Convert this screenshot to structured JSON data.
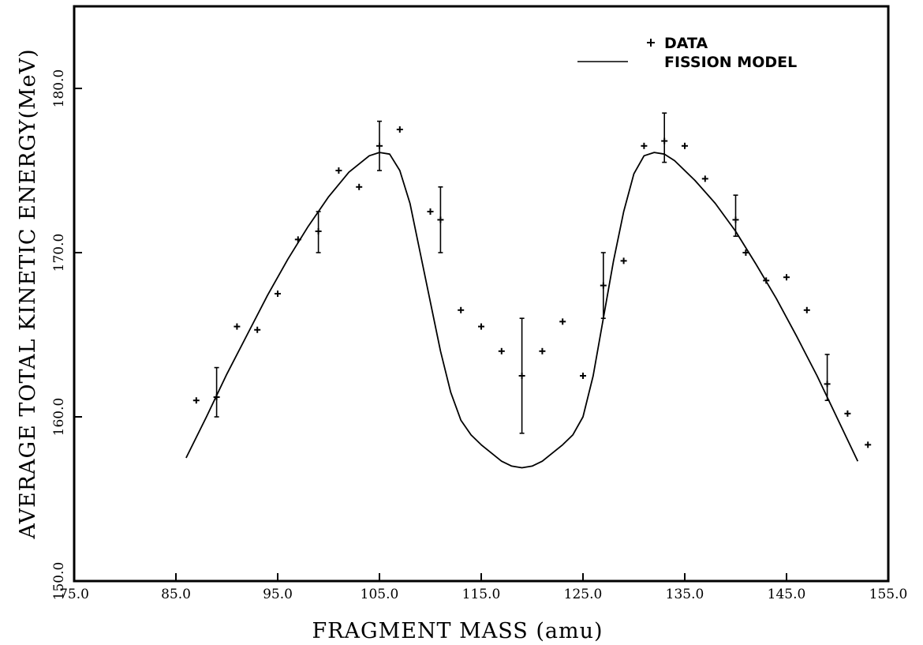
{
  "chart_data": {
    "type": "line",
    "title": "",
    "xlabel": "FRAGMENT MASS (amu)",
    "ylabel": "AVERAGE TOTAL KINETIC ENERGY(MeV)",
    "xlim": [
      75,
      155
    ],
    "ylim": [
      150,
      185
    ],
    "x_ticks": [
      "75.0",
      "85.0",
      "95.0",
      "105.0",
      "115.0",
      "125.0",
      "135.0",
      "145.0",
      "155.0"
    ],
    "y_ticks": [
      "150.0",
      "160.0",
      "170.0",
      "180.0"
    ],
    "grid": false,
    "legend_position": "top-right",
    "colors": {
      "ink": "#000000",
      "background": "#ffffff"
    },
    "series": [
      {
        "name": "DATA",
        "kind": "scatter-errorbar",
        "points": [
          {
            "x": 87,
            "y": 161.0
          },
          {
            "x": 89,
            "y": 161.2,
            "err_low": 160.0,
            "err_high": 163.0
          },
          {
            "x": 91,
            "y": 165.5
          },
          {
            "x": 93,
            "y": 165.3
          },
          {
            "x": 95,
            "y": 167.5
          },
          {
            "x": 97,
            "y": 170.8
          },
          {
            "x": 99,
            "y": 171.3,
            "err_low": 170.0,
            "err_high": 172.5
          },
          {
            "x": 101,
            "y": 175.0
          },
          {
            "x": 103,
            "y": 174.0
          },
          {
            "x": 105,
            "y": 176.5,
            "err_low": 175.0,
            "err_high": 178.0
          },
          {
            "x": 107,
            "y": 177.5
          },
          {
            "x": 110,
            "y": 172.5
          },
          {
            "x": 111,
            "y": 172.0,
            "err_low": 170.0,
            "err_high": 174.0
          },
          {
            "x": 113,
            "y": 166.5
          },
          {
            "x": 115,
            "y": 165.5
          },
          {
            "x": 117,
            "y": 164.0
          },
          {
            "x": 119,
            "y": 162.5,
            "err_low": 159.0,
            "err_high": 166.0
          },
          {
            "x": 121,
            "y": 164.0
          },
          {
            "x": 123,
            "y": 165.8
          },
          {
            "x": 125,
            "y": 162.5
          },
          {
            "x": 127,
            "y": 168.0,
            "err_low": 166.0,
            "err_high": 170.0
          },
          {
            "x": 129,
            "y": 169.5
          },
          {
            "x": 131,
            "y": 176.5
          },
          {
            "x": 133,
            "y": 176.8,
            "err_low": 175.5,
            "err_high": 178.5
          },
          {
            "x": 135,
            "y": 176.5
          },
          {
            "x": 137,
            "y": 174.5
          },
          {
            "x": 140,
            "y": 172.0,
            "err_low": 171.0,
            "err_high": 173.5
          },
          {
            "x": 141,
            "y": 170.0
          },
          {
            "x": 143,
            "y": 168.3
          },
          {
            "x": 145,
            "y": 168.5
          },
          {
            "x": 147,
            "y": 166.5
          },
          {
            "x": 149,
            "y": 162.0,
            "err_low": 161.0,
            "err_high": 163.8
          },
          {
            "x": 151,
            "y": 160.2
          },
          {
            "x": 153,
            "y": 158.3
          }
        ]
      },
      {
        "name": "FISSION MODEL",
        "kind": "line",
        "x": [
          86,
          88,
          90,
          92,
          94,
          96,
          98,
          100,
          102,
          104,
          105,
          106,
          107,
          108,
          109,
          110,
          111,
          112,
          113,
          114,
          115,
          116,
          117,
          118,
          119,
          120,
          121,
          122,
          123,
          124,
          125,
          126,
          127,
          128,
          129,
          130,
          131,
          132,
          133,
          134,
          136,
          138,
          140,
          142,
          144,
          146,
          148,
          150,
          152
        ],
        "y": [
          157.5,
          160.0,
          162.6,
          165.0,
          167.4,
          169.6,
          171.6,
          173.4,
          174.9,
          175.9,
          176.1,
          176.0,
          175.0,
          173.0,
          170.0,
          167.0,
          164.0,
          161.5,
          159.8,
          158.9,
          158.3,
          157.8,
          157.3,
          157.0,
          156.9,
          157.0,
          157.3,
          157.8,
          158.3,
          158.9,
          160.0,
          162.5,
          166.0,
          169.5,
          172.5,
          174.8,
          175.9,
          176.1,
          176.0,
          175.6,
          174.4,
          173.0,
          171.3,
          169.3,
          167.2,
          164.9,
          162.5,
          159.9,
          157.3
        ]
      }
    ]
  }
}
